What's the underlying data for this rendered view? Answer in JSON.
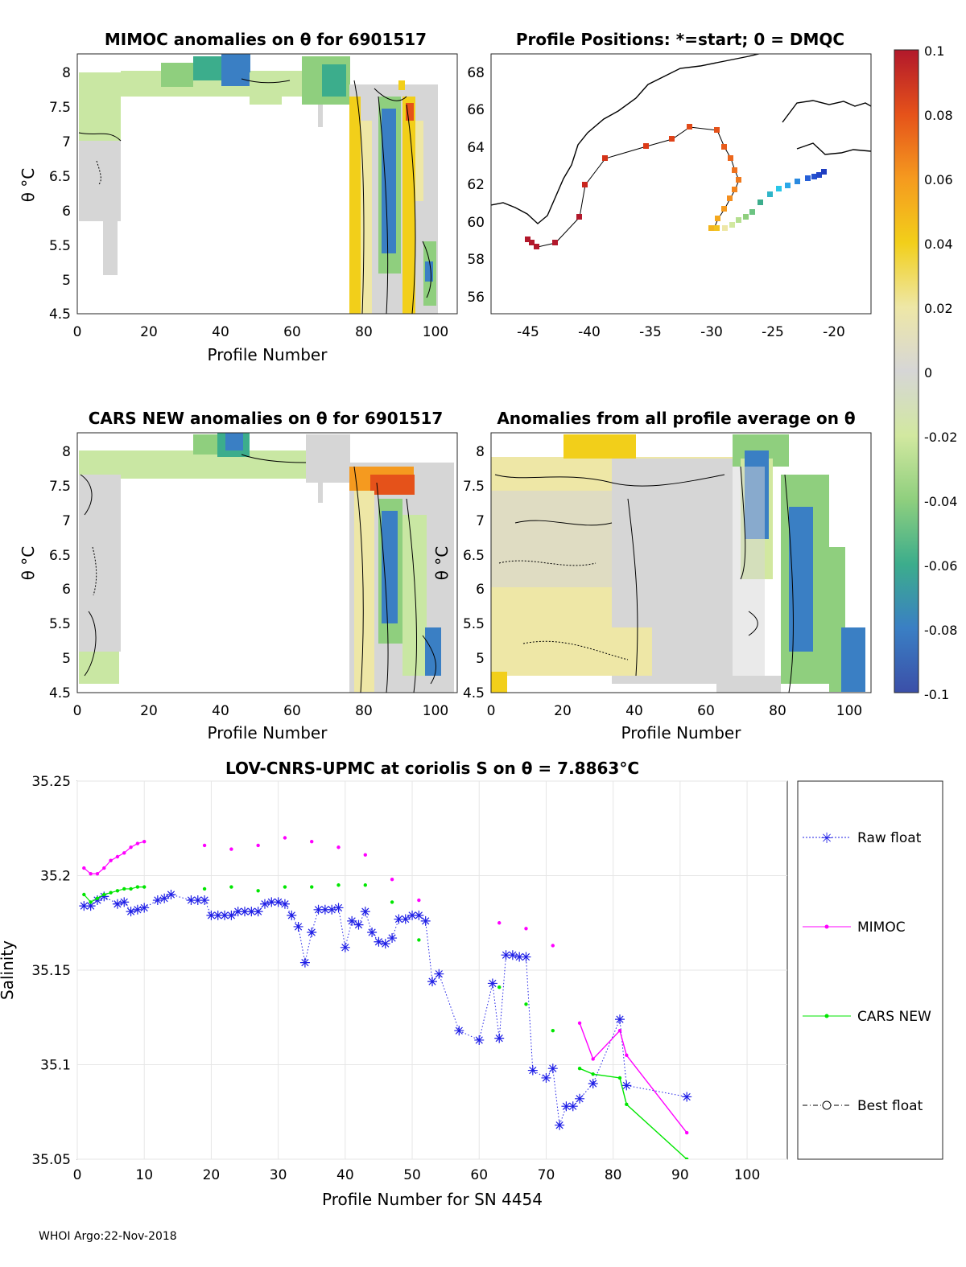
{
  "footer": "WHOI Argo:22-Nov-2018",
  "panels": {
    "mimoc": {
      "title": "MIMOC anomalies on θ  for 6901517",
      "xlabel": "Profile Number",
      "ylabel": "θ °C",
      "xticks": [
        "0",
        "20",
        "40",
        "60",
        "80",
        "100"
      ],
      "yticks": [
        "8",
        "7.5",
        "7",
        "6.5",
        "6",
        "5.5",
        "5",
        "4.5"
      ]
    },
    "positions": {
      "title": "Profile Positions: *=start; 0 = DMQC",
      "xticks": [
        "-45",
        "-40",
        "-35",
        "-30",
        "-25",
        "-20"
      ],
      "yticks": [
        "68",
        "66",
        "64",
        "62",
        "60",
        "58",
        "56"
      ]
    },
    "cars": {
      "title": "CARS NEW anomalies on θ for 6901517",
      "xlabel": "Profile Number",
      "ylabel": "θ °C",
      "xticks": [
        "0",
        "20",
        "40",
        "60",
        "80",
        "100"
      ],
      "yticks": [
        "8",
        "7.5",
        "7",
        "6.5",
        "6",
        "5.5",
        "5",
        "4.5"
      ]
    },
    "allavg": {
      "title": "Anomalies from all profile average on θ",
      "xlabel": "Profile Number",
      "ylabel": "θ °C",
      "xticks": [
        "0",
        "20",
        "40",
        "60",
        "80",
        "100"
      ],
      "yticks": [
        "8",
        "7.5",
        "7",
        "6.5",
        "6",
        "5.5",
        "5",
        "4.5"
      ]
    }
  },
  "colorbar": {
    "ticks": [
      "0.1",
      "0.08",
      "0.06",
      "0.04",
      "0.02",
      "0",
      "-0.02",
      "-0.04",
      "-0.06",
      "-0.08",
      "-0.1"
    ],
    "colors": [
      "#b2182b",
      "#e5521a",
      "#f59a1f",
      "#f2cf1a",
      "#eee7a6",
      "#d6d6d6",
      "#d2e8a0",
      "#8fcf7e",
      "#3cad8c",
      "#3a7fc4",
      "#3b4fa8"
    ]
  },
  "chart_data": {
    "type": "line",
    "title": "LOV-CNRS-UPMC at coriolis S on θ = 7.8863°C",
    "xlabel": "Profile Number for SN 4454",
    "ylabel": "Salinity",
    "xlim": [
      0,
      106
    ],
    "ylim": [
      35.05,
      35.25
    ],
    "xticks": [
      "0",
      "10",
      "20",
      "30",
      "40",
      "50",
      "60",
      "70",
      "80",
      "90",
      "100"
    ],
    "yticks": [
      "35.05",
      "35.1",
      "35.15",
      "35.2",
      "35.25"
    ],
    "legend": [
      "Raw float",
      "MIMOC",
      "CARS NEW",
      "Best float"
    ],
    "legend_position": "outside-right",
    "series": [
      {
        "name": "Raw float",
        "color": "#1f1fe6",
        "style": "dotted-star",
        "x": [
          1,
          2,
          3,
          4,
          6,
          7,
          8,
          9,
          10,
          12,
          13,
          14,
          17,
          18,
          19,
          20,
          21,
          22,
          23,
          24,
          25,
          26,
          27,
          28,
          29,
          30,
          31,
          32,
          33,
          34,
          35,
          36,
          37,
          38,
          39,
          40,
          41,
          42,
          43,
          44,
          45,
          46,
          47,
          48,
          49,
          50,
          51,
          52,
          53,
          54,
          57,
          60,
          62,
          63,
          64,
          65,
          66,
          67,
          68,
          70,
          71,
          72,
          73,
          74,
          75,
          77,
          81,
          82,
          91
        ],
        "y": [
          35.184,
          35.184,
          35.187,
          35.189,
          35.185,
          35.186,
          35.181,
          35.182,
          35.183,
          35.187,
          35.188,
          35.19,
          35.187,
          35.187,
          35.187,
          35.179,
          35.179,
          35.179,
          35.179,
          35.181,
          35.181,
          35.181,
          35.181,
          35.185,
          35.186,
          35.186,
          35.185,
          35.179,
          35.173,
          35.154,
          35.17,
          35.182,
          35.182,
          35.182,
          35.183,
          35.162,
          35.176,
          35.174,
          35.181,
          35.17,
          35.165,
          35.164,
          35.167,
          35.177,
          35.177,
          35.179,
          35.179,
          35.176,
          35.144,
          35.148,
          35.118,
          35.113,
          35.143,
          35.114,
          35.158,
          35.158,
          35.157,
          35.157,
          35.097,
          35.093,
          35.098,
          35.068,
          35.078,
          35.078,
          35.082,
          35.09,
          35.124,
          35.089,
          35.083
        ]
      },
      {
        "name": "MIMOC",
        "color": "#ff00ff",
        "style": "dot-line",
        "x": [
          1,
          2,
          3,
          4,
          5,
          6,
          7,
          8,
          9,
          10,
          19,
          23,
          27,
          31,
          35,
          39,
          43,
          47,
          51,
          63,
          67,
          71,
          75,
          77,
          81,
          82,
          91
        ],
        "y": [
          35.204,
          35.201,
          35.201,
          35.204,
          35.208,
          35.21,
          35.212,
          35.215,
          35.217,
          35.218,
          35.216,
          35.214,
          35.216,
          35.22,
          35.218,
          35.215,
          35.211,
          35.198,
          35.187,
          35.175,
          35.172,
          35.163,
          35.122,
          35.103,
          35.118,
          35.105,
          35.064
        ],
        "connected_from_index": 22
      },
      {
        "name": "CARS NEW",
        "color": "#00e600",
        "style": "dot-line",
        "x": [
          1,
          2,
          3,
          4,
          5,
          6,
          7,
          8,
          9,
          10,
          19,
          23,
          27,
          31,
          35,
          39,
          43,
          47,
          51,
          63,
          67,
          71,
          75,
          77,
          81,
          82,
          91
        ],
        "y": [
          35.19,
          35.186,
          35.188,
          35.19,
          35.191,
          35.192,
          35.193,
          35.193,
          35.194,
          35.194,
          35.193,
          35.194,
          35.192,
          35.194,
          35.194,
          35.195,
          35.195,
          35.186,
          35.166,
          35.141,
          35.132,
          35.118,
          35.098,
          35.095,
          35.093,
          35.079,
          35.05
        ],
        "connected_from_index": 22
      },
      {
        "name": "Best float",
        "color": "#000000",
        "style": "dashdot-circle",
        "x": [],
        "y": []
      }
    ]
  }
}
